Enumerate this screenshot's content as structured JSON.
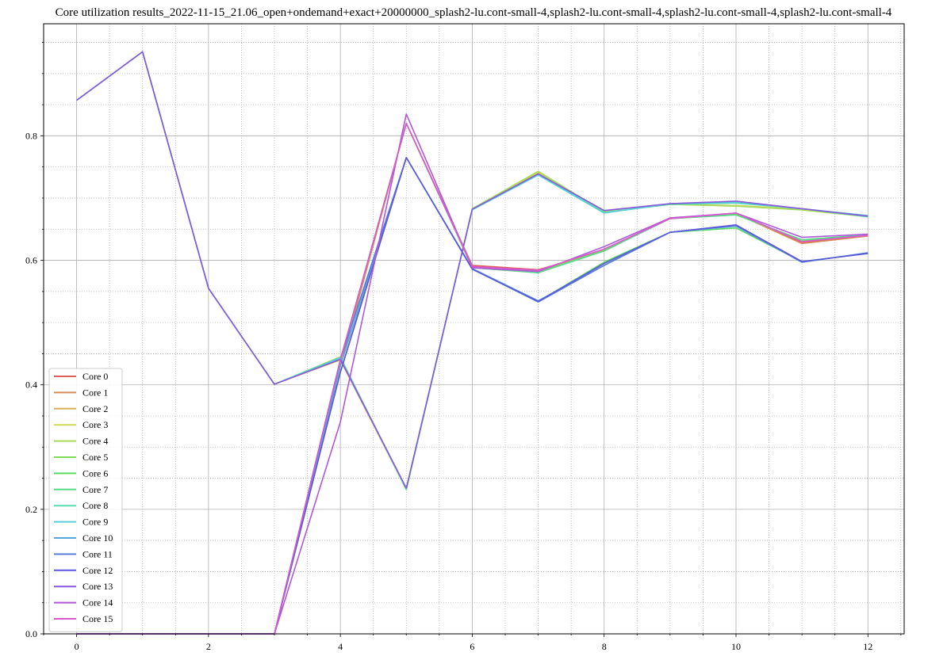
{
  "chart_data": {
    "type": "line",
    "title": "Core utilization results_2022-11-15_21.06_open+ondemand+exact+20000000_splash2-lu.cont-small-4,splash2-lu.cont-small-4,splash2-lu.cont-small-4,splash2-lu.cont-small-4",
    "xlabel": "",
    "ylabel": "",
    "xlim": [
      -0.5,
      12.55
    ],
    "ylim": [
      0.0,
      0.98
    ],
    "x_ticks": [
      0,
      2,
      4,
      6,
      8,
      10,
      12
    ],
    "y_ticks": [
      0.0,
      0.2,
      0.4,
      0.6,
      0.8
    ],
    "grid": true,
    "minor_grid": true,
    "legend_position": "lower-left",
    "x": [
      0,
      1,
      2,
      3,
      4,
      5,
      6,
      7,
      8,
      9,
      10,
      11,
      12
    ],
    "series": [
      {
        "name": "Core 0",
        "color": "#db5f57",
        "values": [
          0,
          0,
          0,
          0,
          0.44,
          0.82,
          0.592,
          0.585,
          0.615,
          0.668,
          0.675,
          0.628,
          0.64
        ]
      },
      {
        "name": "Core 1",
        "color": "#db8857",
        "values": [
          0,
          0,
          0,
          0,
          0.43,
          0.82,
          0.59,
          0.583,
          0.617,
          0.667,
          0.675,
          0.627,
          0.639
        ]
      },
      {
        "name": "Core 2",
        "color": "#dbb157",
        "values": [
          0.857,
          0.935,
          0.555,
          0.401,
          0.44,
          0.232,
          0.682,
          0.74,
          0.678,
          0.69,
          0.688,
          0.682,
          0.671
        ]
      },
      {
        "name": "Core 3",
        "color": "#cfdb57",
        "values": [
          0.857,
          0.935,
          0.555,
          0.401,
          0.442,
          0.232,
          0.683,
          0.742,
          0.678,
          0.69,
          0.688,
          0.682,
          0.671
        ]
      },
      {
        "name": "Core 4",
        "color": "#a6db57",
        "values": [
          0.857,
          0.935,
          0.555,
          0.401,
          0.445,
          0.231,
          0.683,
          0.743,
          0.678,
          0.69,
          0.687,
          0.681,
          0.67
        ]
      },
      {
        "name": "Core 5",
        "color": "#7ddb57",
        "values": [
          0,
          0,
          0,
          0,
          0.44,
          0.82,
          0.59,
          0.582,
          0.616,
          0.667,
          0.674,
          0.631,
          0.64
        ]
      },
      {
        "name": "Core 6",
        "color": "#57db5f",
        "values": [
          0,
          0,
          0,
          0,
          0.42,
          0.765,
          0.586,
          0.534,
          0.597,
          0.645,
          0.652,
          0.598,
          0.611
        ]
      },
      {
        "name": "Core 7",
        "color": "#57db88",
        "values": [
          0,
          0,
          0,
          0,
          0.44,
          0.82,
          0.588,
          0.58,
          0.615,
          0.667,
          0.673,
          0.633,
          0.641
        ]
      },
      {
        "name": "Core 8",
        "color": "#57dbb1",
        "values": [
          0.857,
          0.935,
          0.555,
          0.401,
          0.444,
          0.232,
          0.682,
          0.738,
          0.677,
          0.69,
          0.692,
          0.683,
          0.67
        ]
      },
      {
        "name": "Core 9",
        "color": "#57cfdb",
        "values": [
          0.857,
          0.935,
          0.555,
          0.401,
          0.443,
          0.233,
          0.681,
          0.737,
          0.676,
          0.691,
          0.693,
          0.683,
          0.672
        ]
      },
      {
        "name": "Core 10",
        "color": "#57a6db",
        "values": [
          0,
          0,
          0,
          0,
          0.43,
          0.765,
          0.587,
          0.535,
          0.592,
          0.645,
          0.655,
          0.597,
          0.612
        ]
      },
      {
        "name": "Core 11",
        "color": "#577ddb",
        "values": [
          0,
          0,
          0,
          0,
          0.44,
          0.765,
          0.586,
          0.533,
          0.592,
          0.645,
          0.656,
          0.597,
          0.612
        ]
      },
      {
        "name": "Core 12",
        "color": "#5f57db",
        "values": [
          0,
          0,
          0,
          0,
          0.42,
          0.765,
          0.586,
          0.534,
          0.595,
          0.645,
          0.657,
          0.598,
          0.611
        ]
      },
      {
        "name": "Core 13",
        "color": "#8857db",
        "values": [
          0.857,
          0.935,
          0.555,
          0.401,
          0.441,
          0.234,
          0.682,
          0.739,
          0.68,
          0.691,
          0.695,
          0.683,
          0.671
        ]
      },
      {
        "name": "Core 14",
        "color": "#b157db",
        "values": [
          0,
          0,
          0,
          0,
          0.34,
          0.835,
          0.588,
          0.582,
          0.622,
          0.668,
          0.676,
          0.637,
          0.642
        ]
      },
      {
        "name": "Core 15",
        "color": "#db57cf",
        "values": [
          0,
          0,
          0,
          0,
          0.44,
          0.82,
          0.59,
          0.584,
          0.618,
          0.667,
          0.676,
          0.63,
          0.64
        ]
      }
    ],
    "legend_colors": [
      "#db5f57",
      "#db8857",
      "#dbb157",
      "#cfdb57",
      "#a6db57",
      "#7ddb57",
      "#57db5f",
      "#57db88",
      "#57dbb1",
      "#57cfdb",
      "#57a6db",
      "#577ddb",
      "#5f57db",
      "#8857db",
      "#b157db",
      "#db57cf"
    ]
  }
}
